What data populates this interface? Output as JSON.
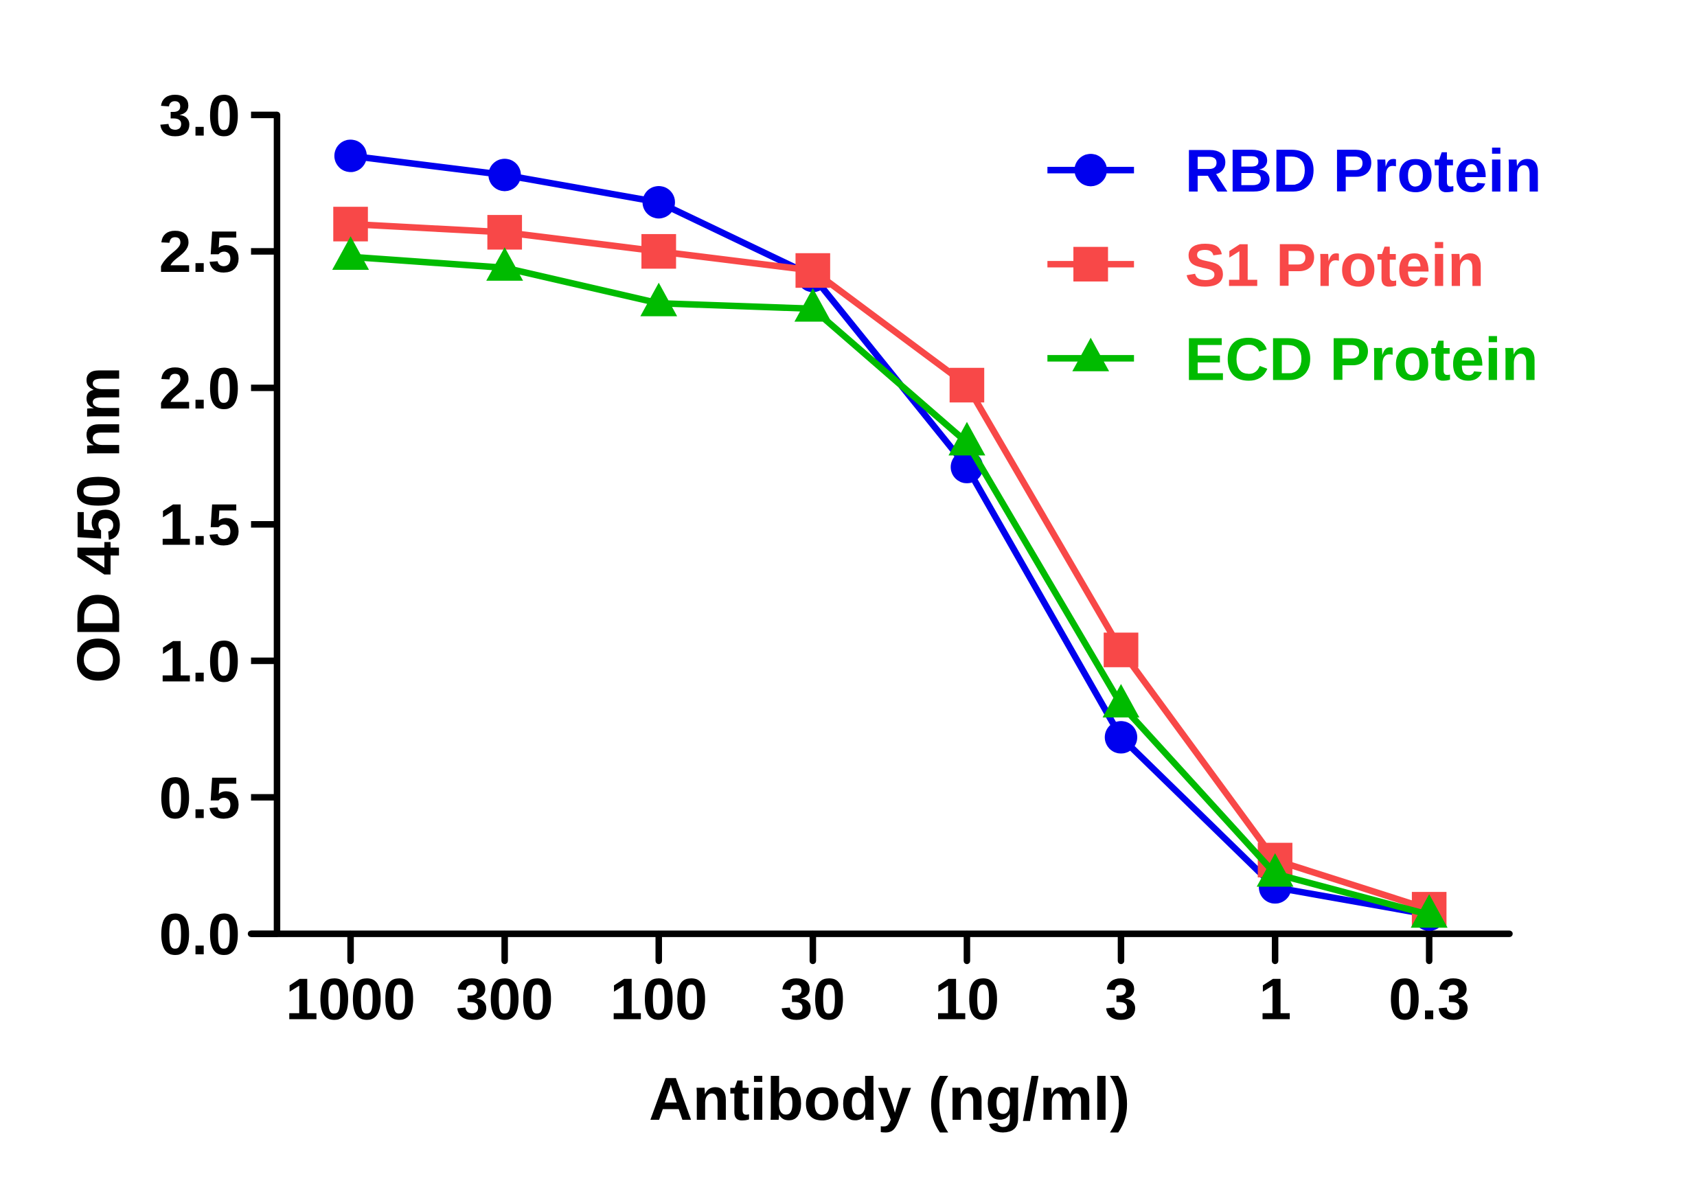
{
  "chart_data": {
    "type": "line",
    "xlabel": "Antibody (ng/ml)",
    "ylabel": "OD 450 nm",
    "categories": [
      "1000",
      "300",
      "100",
      "30",
      "10",
      "3",
      "1",
      "0.3"
    ],
    "ylim": [
      0,
      3.0
    ],
    "yticks": [
      "0.0",
      "0.5",
      "1.0",
      "1.5",
      "2.0",
      "2.5",
      "3.0"
    ],
    "grid": false,
    "legend_position": "top-right",
    "series": [
      {
        "name": "RBD Protein",
        "color": "#0000ee",
        "marker": "circle",
        "values": [
          2.85,
          2.78,
          2.68,
          2.41,
          1.71,
          0.72,
          0.17,
          0.07
        ]
      },
      {
        "name": "S1 Protein",
        "color": "#f84848",
        "marker": "square",
        "values": [
          2.6,
          2.57,
          2.5,
          2.43,
          2.01,
          1.04,
          0.27,
          0.09
        ]
      },
      {
        "name": "ECD Protein",
        "color": "#00bb00",
        "marker": "triangle",
        "values": [
          2.48,
          2.44,
          2.31,
          2.29,
          1.8,
          0.84,
          0.22,
          0.07
        ]
      }
    ]
  }
}
